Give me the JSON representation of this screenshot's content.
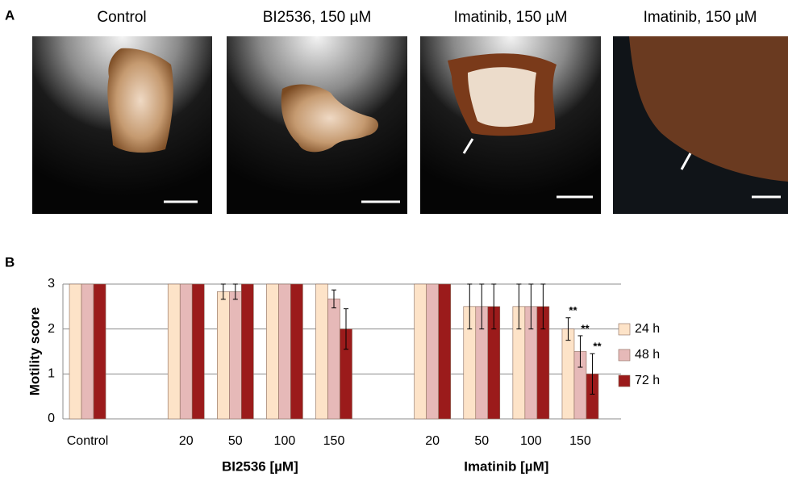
{
  "panel_labels": [
    "A",
    "B"
  ],
  "photos": [
    {
      "caption": "Control"
    },
    {
      "caption": "BI2536, 150 µM"
    },
    {
      "caption": "Imatinib, 150 µM"
    },
    {
      "caption": "Imatinib, 150 µM"
    }
  ],
  "chart_data": {
    "type": "bar",
    "y_label": "Motility score",
    "categories": [
      "Control",
      null,
      "20",
      "50",
      "100",
      "150",
      null,
      "20",
      "50",
      "100",
      "150"
    ],
    "group_labels": [
      "BI2536 [µM]",
      "Imatinib [µM]"
    ],
    "series": [
      {
        "name": "24 h",
        "color": "#fde3c8",
        "values": [
          3,
          null,
          3,
          2.83,
          3,
          3,
          null,
          3,
          2.5,
          2.5,
          2
        ],
        "errors": [
          0,
          null,
          0,
          0.17,
          0,
          0,
          null,
          0,
          0.5,
          0.5,
          0.25
        ],
        "annotations": [
          null,
          null,
          null,
          null,
          null,
          null,
          null,
          null,
          null,
          null,
          "**"
        ]
      },
      {
        "name": "48 h",
        "color": "#e6b9b8",
        "values": [
          3,
          null,
          3,
          2.83,
          3,
          2.67,
          null,
          3,
          2.5,
          2.5,
          1.5
        ],
        "errors": [
          0,
          null,
          0,
          0.17,
          0,
          0.2,
          null,
          0,
          0.5,
          0.5,
          0.35
        ],
        "annotations": [
          null,
          null,
          null,
          null,
          null,
          null,
          null,
          null,
          null,
          null,
          "**"
        ]
      },
      {
        "name": "72 h",
        "color": "#9b1b1b",
        "values": [
          3,
          null,
          3,
          3,
          3,
          2,
          null,
          3,
          2.5,
          2.5,
          1
        ],
        "errors": [
          0,
          null,
          0,
          0,
          0,
          0.45,
          null,
          0,
          0.5,
          0.5,
          0.45
        ],
        "annotations": [
          null,
          null,
          null,
          null,
          null,
          null,
          null,
          null,
          null,
          null,
          "**"
        ]
      }
    ],
    "ylim": [
      0,
      3
    ],
    "yticks": [
      0,
      1,
      2,
      3
    ],
    "grid": true,
    "legend": "right"
  }
}
